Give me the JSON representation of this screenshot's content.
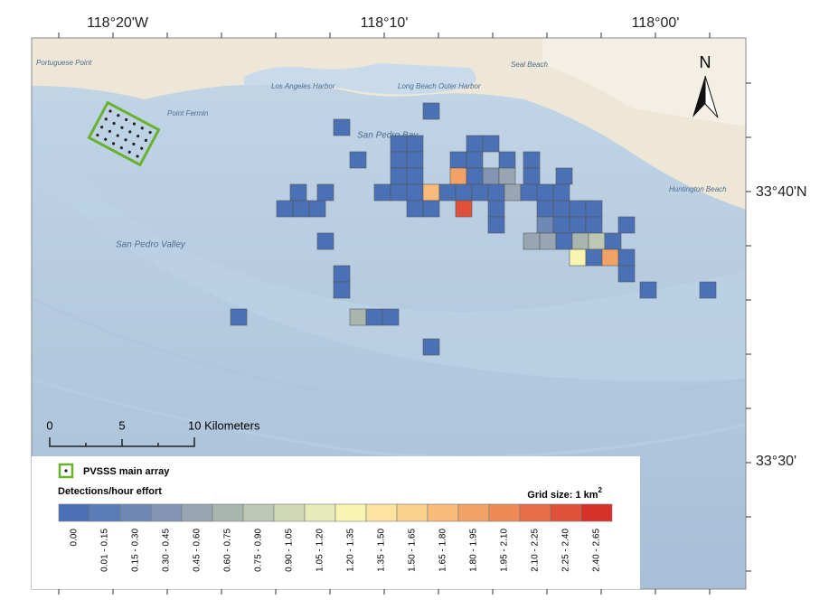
{
  "map": {
    "lon_labels": [
      "118°20'W",
      "118°10'",
      "118°00'"
    ],
    "lat_labels": [
      "33°40'N",
      "33°30'"
    ],
    "north": "N",
    "scale_labels": [
      "0",
      "5",
      "10 Kilometers"
    ],
    "place_labels": [
      "Portuguese Point",
      "Los Angeles Harbor",
      "Long Beach Outer Harbor",
      "Point Fermin",
      "San Pedro Bay",
      "San Pedro Valley",
      "Huntington Beach",
      "Seal Beach"
    ]
  },
  "legend": {
    "array_label": "PVSSS main array",
    "title": "Detections/hour effort",
    "grid_size": "Grid size: 1 km",
    "grid_size_sup": "2",
    "bins": [
      {
        "label": "0.00",
        "color": "#4a70b6"
      },
      {
        "label": "0.01 - 0.15",
        "color": "#5a7db8"
      },
      {
        "label": "0.15 - 0.30",
        "color": "#6e89b6"
      },
      {
        "label": "0.30 - 0.45",
        "color": "#8296b4"
      },
      {
        "label": "0.45 - 0.60",
        "color": "#97a6b2"
      },
      {
        "label": "0.60 - 0.75",
        "color": "#a9b6b0"
      },
      {
        "label": "0.75 - 0.90",
        "color": "#bcc7b4"
      },
      {
        "label": "0.90 - 1.05",
        "color": "#d2d9b6"
      },
      {
        "label": "1.05 - 1.20",
        "color": "#e6ebb8"
      },
      {
        "label": "1.20 - 1.35",
        "color": "#f8f4b2"
      },
      {
        "label": "1.35 - 1.50",
        "color": "#fde3a0"
      },
      {
        "label": "1.50 - 1.65",
        "color": "#fbcf8c"
      },
      {
        "label": "1.65 - 1.80",
        "color": "#f8bb7a"
      },
      {
        "label": "1.80 - 1.95",
        "color": "#f3a266"
      },
      {
        "label": "1.95 - 2.10",
        "color": "#ee8a56"
      },
      {
        "label": "2.10 - 2.25",
        "color": "#e76e48"
      },
      {
        "label": "2.25 - 2.40",
        "color": "#e0513b"
      },
      {
        "label": "2.40 - 2.65",
        "color": "#d7312c"
      }
    ]
  }
}
